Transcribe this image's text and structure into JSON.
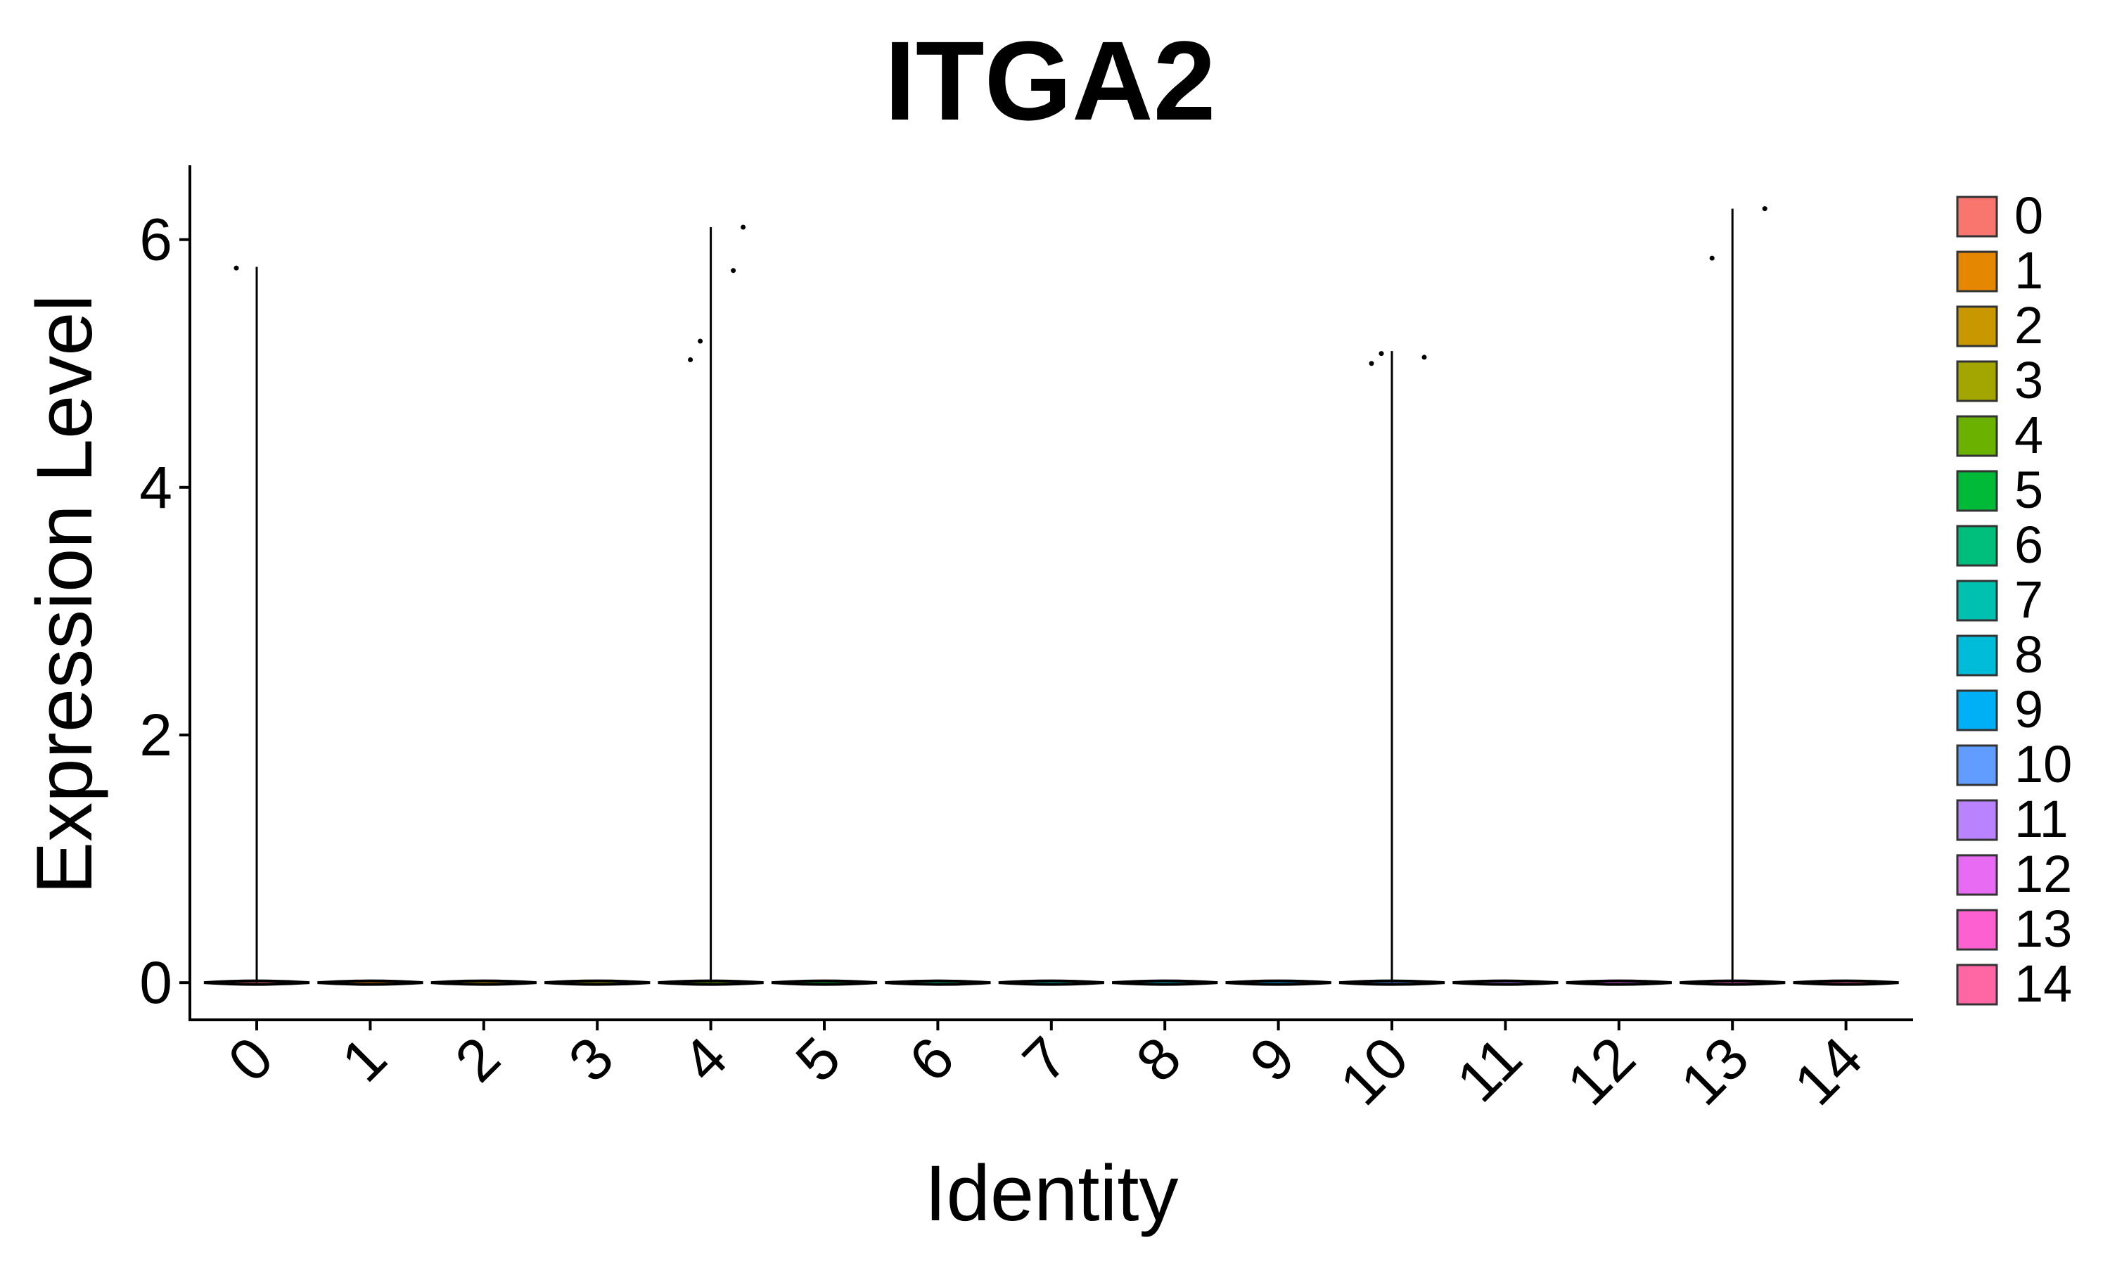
{
  "chart_data": {
    "type": "violin",
    "title": "ITGA2",
    "xlabel": "Identity",
    "ylabel": "Expression Level",
    "categories": [
      "0",
      "1",
      "2",
      "3",
      "4",
      "5",
      "6",
      "7",
      "8",
      "9",
      "10",
      "11",
      "12",
      "13",
      "14"
    ],
    "ylim": [
      -0.3,
      6.6
    ],
    "yticks": [
      0,
      2,
      4,
      6
    ],
    "max_values": [
      5.78,
      0,
      0,
      0,
      6.1,
      0,
      0,
      0,
      0,
      0,
      5.1,
      0,
      0,
      6.25,
      0
    ],
    "points": [
      {
        "category": "0",
        "y": 5.77
      },
      {
        "category": "4",
        "y": 5.03
      },
      {
        "category": "4",
        "y": 6.1
      },
      {
        "category": "4",
        "y": 5.18
      },
      {
        "category": "4",
        "y": 5.75
      },
      {
        "category": "10",
        "y": 5.0
      },
      {
        "category": "10",
        "y": 5.05
      },
      {
        "category": "10",
        "y": 5.08
      },
      {
        "category": "13",
        "y": 5.85
      },
      {
        "category": "13",
        "y": 6.25
      }
    ],
    "colors": [
      "#F8766D",
      "#E58700",
      "#C99800",
      "#A3A500",
      "#6BB100",
      "#00BA38",
      "#00BF7D",
      "#00C0AF",
      "#00BCD8",
      "#00B0F6",
      "#619CFF",
      "#B983FF",
      "#E76BF3",
      "#FD61D1",
      "#FF67A4"
    ],
    "legend": {
      "position": "right",
      "entries": [
        "0",
        "1",
        "2",
        "3",
        "4",
        "5",
        "6",
        "7",
        "8",
        "9",
        "10",
        "11",
        "12",
        "13",
        "14"
      ]
    },
    "grid": false
  }
}
